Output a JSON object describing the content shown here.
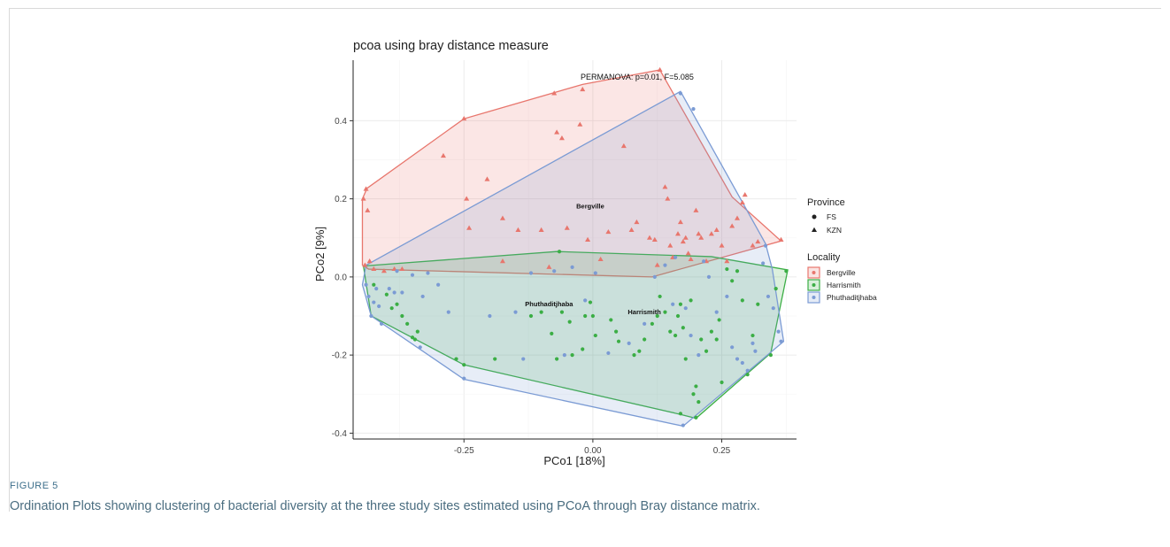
{
  "figure": {
    "label": "FIGURE 5",
    "caption": "Ordination Plots showing clustering of bacterial diversity at the three study sites estimated using PCoA through Bray distance matrix."
  },
  "chart_data": {
    "type": "scatter",
    "title": "pcoa using bray distance measure",
    "annotation": "PERMANOVA: p=0.01, F=5.085",
    "xlabel": "PCo1 [18%]",
    "ylabel": "PCo2 [9%]",
    "xlim": [
      -0.465,
      0.395
    ],
    "ylim": [
      -0.415,
      0.555
    ],
    "xticks": [
      -0.25,
      0.0,
      0.25
    ],
    "xtick_labels": [
      "-0.25",
      "0.00",
      "0.25"
    ],
    "yticks": [
      -0.4,
      -0.2,
      0.0,
      0.2,
      0.4
    ],
    "ytick_labels": [
      "-0.4",
      "-0.2",
      "0.0",
      "0.2",
      "0.4"
    ],
    "grid": true,
    "legend_position": "right",
    "legend": {
      "shape_title": "Province",
      "shapes": [
        {
          "label": "FS",
          "shape": "circle"
        },
        {
          "label": "KZN",
          "shape": "triangle"
        }
      ],
      "color_title": "Locality"
    },
    "colors": {
      "Bergville": "#e8766d",
      "Harrismith": "#3bae45",
      "Phuthaditjhaba": "#7b9bd4"
    },
    "series": [
      {
        "name": "Bergville",
        "label": "Bergville",
        "label_pos": [
          -0.005,
          0.175
        ],
        "shape": "triangle",
        "points": [
          [
            -0.445,
            0.2
          ],
          [
            -0.44,
            0.225
          ],
          [
            -0.437,
            0.17
          ],
          [
            -0.442,
            0.03
          ],
          [
            -0.433,
            0.04
          ],
          [
            -0.425,
            0.02
          ],
          [
            -0.405,
            0.015
          ],
          [
            -0.385,
            0.02
          ],
          [
            -0.37,
            0.02
          ],
          [
            -0.29,
            0.31
          ],
          [
            -0.25,
            0.405
          ],
          [
            -0.245,
            0.2
          ],
          [
            -0.24,
            0.125
          ],
          [
            -0.205,
            0.25
          ],
          [
            -0.175,
            0.15
          ],
          [
            -0.175,
            0.04
          ],
          [
            -0.145,
            0.12
          ],
          [
            -0.1,
            0.12
          ],
          [
            -0.085,
            0.025
          ],
          [
            -0.075,
            0.47
          ],
          [
            -0.07,
            0.37
          ],
          [
            -0.06,
            0.355
          ],
          [
            -0.05,
            0.125
          ],
          [
            -0.02,
            0.48
          ],
          [
            -0.025,
            0.39
          ],
          [
            -0.01,
            0.095
          ],
          [
            0.015,
            0.045
          ],
          [
            0.03,
            0.115
          ],
          [
            0.06,
            0.335
          ],
          [
            0.075,
            0.12
          ],
          [
            0.085,
            0.14
          ],
          [
            0.11,
            0.1
          ],
          [
            0.12,
            0.095
          ],
          [
            0.125,
            0.03
          ],
          [
            0.13,
            0.53
          ],
          [
            0.14,
            0.23
          ],
          [
            0.145,
            0.2
          ],
          [
            0.15,
            0.08
          ],
          [
            0.155,
            0.05
          ],
          [
            0.165,
            0.11
          ],
          [
            0.17,
            0.14
          ],
          [
            0.175,
            0.09
          ],
          [
            0.18,
            0.1
          ],
          [
            0.185,
            0.06
          ],
          [
            0.19,
            0.045
          ],
          [
            0.2,
            0.17
          ],
          [
            0.205,
            0.11
          ],
          [
            0.21,
            0.1
          ],
          [
            0.22,
            0.04
          ],
          [
            0.23,
            0.11
          ],
          [
            0.24,
            0.12
          ],
          [
            0.25,
            0.08
          ],
          [
            0.26,
            0.04
          ],
          [
            0.27,
            0.13
          ],
          [
            0.28,
            0.15
          ],
          [
            0.29,
            0.19
          ],
          [
            0.295,
            0.21
          ],
          [
            0.31,
            0.08
          ],
          [
            0.32,
            0.09
          ],
          [
            0.365,
            0.095
          ]
        ],
        "hull": [
          [
            -0.447,
            0.03
          ],
          [
            -0.447,
            0.2
          ],
          [
            -0.438,
            0.227
          ],
          [
            -0.25,
            0.405
          ],
          [
            -0.02,
            0.493
          ],
          [
            0.13,
            0.53
          ],
          [
            0.27,
            0.205
          ],
          [
            0.365,
            0.092
          ],
          [
            0.115,
            0.0
          ],
          [
            -0.435,
            0.02
          ]
        ]
      },
      {
        "name": "Harrismith",
        "label": "Harrismith",
        "label_pos": [
          0.1,
          -0.095
        ],
        "shape": "circle",
        "points": [
          [
            -0.425,
            -0.02
          ],
          [
            -0.4,
            -0.045
          ],
          [
            -0.39,
            -0.08
          ],
          [
            -0.38,
            -0.07
          ],
          [
            -0.37,
            -0.1
          ],
          [
            -0.36,
            -0.12
          ],
          [
            -0.35,
            -0.155
          ],
          [
            -0.345,
            -0.16
          ],
          [
            -0.34,
            -0.14
          ],
          [
            -0.265,
            -0.21
          ],
          [
            -0.25,
            -0.225
          ],
          [
            -0.19,
            -0.21
          ],
          [
            -0.12,
            -0.1
          ],
          [
            -0.1,
            -0.09
          ],
          [
            -0.08,
            -0.145
          ],
          [
            -0.07,
            -0.21
          ],
          [
            -0.065,
            0.065
          ],
          [
            -0.06,
            -0.09
          ],
          [
            -0.045,
            -0.115
          ],
          [
            -0.04,
            -0.2
          ],
          [
            -0.02,
            -0.185
          ],
          [
            -0.015,
            -0.1
          ],
          [
            -0.005,
            -0.065
          ],
          [
            0.0,
            -0.1
          ],
          [
            0.005,
            -0.15
          ],
          [
            0.035,
            -0.11
          ],
          [
            0.045,
            -0.14
          ],
          [
            0.05,
            -0.165
          ],
          [
            0.08,
            -0.2
          ],
          [
            0.09,
            -0.19
          ],
          [
            0.1,
            -0.16
          ],
          [
            0.115,
            -0.12
          ],
          [
            0.125,
            -0.1
          ],
          [
            0.13,
            -0.05
          ],
          [
            0.14,
            -0.09
          ],
          [
            0.15,
            -0.14
          ],
          [
            0.16,
            -0.15
          ],
          [
            0.165,
            -0.1
          ],
          [
            0.17,
            -0.07
          ],
          [
            0.175,
            -0.13
          ],
          [
            0.18,
            -0.21
          ],
          [
            0.19,
            -0.06
          ],
          [
            0.195,
            -0.3
          ],
          [
            0.2,
            -0.28
          ],
          [
            0.205,
            -0.32
          ],
          [
            0.21,
            -0.16
          ],
          [
            0.22,
            -0.19
          ],
          [
            0.23,
            -0.14
          ],
          [
            0.24,
            -0.16
          ],
          [
            0.245,
            -0.11
          ],
          [
            0.25,
            -0.27
          ],
          [
            0.26,
            0.02
          ],
          [
            0.27,
            -0.01
          ],
          [
            0.28,
            0.015
          ],
          [
            0.29,
            -0.06
          ],
          [
            0.3,
            -0.25
          ],
          [
            0.31,
            -0.15
          ],
          [
            0.32,
            -0.07
          ],
          [
            0.345,
            -0.2
          ],
          [
            0.355,
            -0.03
          ],
          [
            0.375,
            0.015
          ],
          [
            0.2,
            -0.36
          ],
          [
            0.17,
            -0.35
          ]
        ],
        "hull": [
          [
            -0.445,
            0.028
          ],
          [
            -0.07,
            0.065
          ],
          [
            0.23,
            0.052
          ],
          [
            0.378,
            0.018
          ],
          [
            0.345,
            -0.195
          ],
          [
            0.2,
            -0.362
          ],
          [
            0.17,
            -0.352
          ],
          [
            -0.25,
            -0.225
          ],
          [
            -0.43,
            -0.1
          ]
        ]
      },
      {
        "name": "Phuthaditjhaba",
        "label": "Phuthaditjhaba",
        "label_pos": [
          -0.085,
          -0.075
        ],
        "shape": "circle",
        "points": [
          [
            -0.44,
            -0.02
          ],
          [
            -0.435,
            -0.05
          ],
          [
            -0.43,
            -0.1
          ],
          [
            -0.425,
            -0.065
          ],
          [
            -0.42,
            -0.03
          ],
          [
            -0.415,
            -0.075
          ],
          [
            -0.41,
            -0.12
          ],
          [
            -0.395,
            -0.03
          ],
          [
            -0.385,
            -0.04
          ],
          [
            -0.38,
            0.015
          ],
          [
            -0.37,
            -0.04
          ],
          [
            -0.35,
            0.005
          ],
          [
            -0.335,
            -0.18
          ],
          [
            -0.33,
            -0.05
          ],
          [
            -0.32,
            0.01
          ],
          [
            -0.3,
            -0.02
          ],
          [
            -0.28,
            -0.09
          ],
          [
            -0.25,
            -0.26
          ],
          [
            -0.2,
            -0.1
          ],
          [
            -0.15,
            -0.09
          ],
          [
            -0.135,
            -0.21
          ],
          [
            -0.12,
            0.01
          ],
          [
            -0.075,
            0.015
          ],
          [
            -0.055,
            -0.2
          ],
          [
            -0.04,
            0.025
          ],
          [
            -0.015,
            -0.06
          ],
          [
            0.005,
            0.01
          ],
          [
            0.03,
            -0.195
          ],
          [
            0.07,
            -0.17
          ],
          [
            0.1,
            -0.12
          ],
          [
            0.12,
            0.0
          ],
          [
            0.14,
            0.03
          ],
          [
            0.155,
            -0.07
          ],
          [
            0.16,
            0.05
          ],
          [
            0.17,
            0.47
          ],
          [
            0.18,
            -0.08
          ],
          [
            0.19,
            -0.15
          ],
          [
            0.195,
            0.43
          ],
          [
            0.205,
            -0.2
          ],
          [
            0.215,
            0.04
          ],
          [
            0.225,
            0.0
          ],
          [
            0.24,
            -0.09
          ],
          [
            0.26,
            -0.05
          ],
          [
            0.27,
            -0.18
          ],
          [
            0.28,
            -0.21
          ],
          [
            0.29,
            -0.22
          ],
          [
            0.3,
            -0.24
          ],
          [
            0.31,
            -0.17
          ],
          [
            0.315,
            -0.19
          ],
          [
            0.33,
            0.035
          ],
          [
            0.335,
            0.08
          ],
          [
            0.34,
            -0.05
          ],
          [
            0.35,
            -0.08
          ],
          [
            0.36,
            -0.14
          ],
          [
            0.365,
            -0.165
          ],
          [
            0.175,
            -0.38
          ]
        ],
        "hull": [
          [
            -0.44,
            0.03
          ],
          [
            0.17,
            0.475
          ],
          [
            0.335,
            0.085
          ],
          [
            0.348,
            0.02
          ],
          [
            0.37,
            -0.165
          ],
          [
            0.175,
            -0.382
          ],
          [
            -0.25,
            -0.262
          ],
          [
            -0.43,
            -0.1
          ],
          [
            -0.447,
            -0.02
          ]
        ]
      }
    ]
  }
}
